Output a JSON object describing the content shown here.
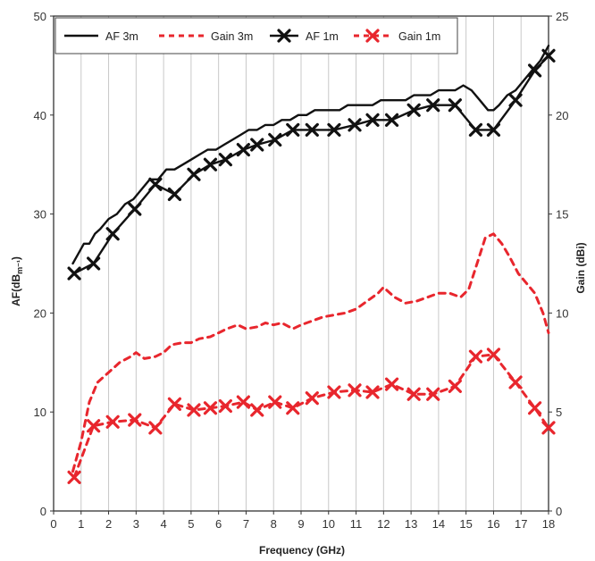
{
  "chart_data": {
    "type": "line",
    "title": "",
    "xlabel": "Frequency (GHz)",
    "ylabel_left": "AF(dBm⁻¹)",
    "ylabel_left_main": "AF(dB",
    "ylabel_left_sub": "m⁻¹",
    "ylabel_left_close": ")",
    "ylabel_right": "Gain (dBi)",
    "xlim": [
      0,
      18
    ],
    "ylim_left": [
      0,
      50
    ],
    "ylim_right": [
      0,
      25
    ],
    "x_ticks": [
      "0",
      "1",
      "2",
      "3",
      "4",
      "5",
      "6",
      "7",
      "8",
      "9",
      "10",
      "11",
      "12",
      "13",
      "14",
      "15",
      "16",
      "17",
      "18"
    ],
    "y_left_ticks": [
      "0",
      "10",
      "20",
      "30",
      "40",
      "50"
    ],
    "y_right_ticks": [
      "0",
      "5",
      "10",
      "15",
      "20",
      "25"
    ],
    "grid": "vertical",
    "legend_position": "top",
    "series": [
      {
        "name": "AF 3m",
        "axis": "left",
        "style": "solid",
        "color": "#111111",
        "marker": "none",
        "x": [
          0.7,
          0.9,
          1.1,
          1.3,
          1.5,
          1.7,
          2.0,
          2.3,
          2.6,
          2.9,
          3.2,
          3.5,
          3.8,
          4.1,
          4.4,
          4.7,
          5.0,
          5.3,
          5.6,
          5.9,
          6.2,
          6.5,
          6.8,
          7.1,
          7.4,
          7.7,
          8.0,
          8.3,
          8.6,
          8.9,
          9.2,
          9.5,
          9.8,
          10.1,
          10.4,
          10.7,
          11.0,
          11.3,
          11.6,
          11.9,
          12.2,
          12.5,
          12.8,
          13.1,
          13.4,
          13.7,
          14.0,
          14.3,
          14.6,
          14.9,
          15.2,
          15.5,
          15.8,
          16.0,
          16.2,
          16.5,
          16.8,
          17.1,
          17.4,
          17.7,
          18.0
        ],
        "y": [
          25,
          26,
          27,
          27,
          28,
          28.5,
          29.5,
          30,
          31,
          31.5,
          32.5,
          33.5,
          33.5,
          34.5,
          34.5,
          35,
          35.5,
          36,
          36.5,
          36.5,
          37,
          37.5,
          38,
          38.5,
          38.5,
          39,
          39,
          39.5,
          39.5,
          40,
          40,
          40.5,
          40.5,
          40.5,
          40.5,
          41,
          41,
          41,
          41,
          41.5,
          41.5,
          41.5,
          41.5,
          42,
          42,
          42,
          42.5,
          42.5,
          42.5,
          43,
          42.5,
          41.5,
          40.5,
          40.5,
          41,
          42,
          42.5,
          43.5,
          44.5,
          45.5,
          47
        ]
      },
      {
        "name": "Gain 3m",
        "axis": "right",
        "style": "dashed",
        "color": "#e8262d",
        "marker": "none",
        "x": [
          0.7,
          1.0,
          1.3,
          1.6,
          2.0,
          2.4,
          2.8,
          3.0,
          3.3,
          3.7,
          4.0,
          4.3,
          4.7,
          5.0,
          5.3,
          5.7,
          6.0,
          6.3,
          6.7,
          7.0,
          7.4,
          7.7,
          8.0,
          8.3,
          8.7,
          9.0,
          9.4,
          9.8,
          10.2,
          10.6,
          11.0,
          11.4,
          11.8,
          12.0,
          12.4,
          12.8,
          13.2,
          13.6,
          14.0,
          14.4,
          14.8,
          15.1,
          15.4,
          15.7,
          16.0,
          16.3,
          16.6,
          16.9,
          17.2,
          17.5,
          17.8,
          18.0
        ],
        "y": [
          2,
          3.5,
          5.5,
          6.5,
          7,
          7.5,
          7.8,
          8,
          7.7,
          7.8,
          8,
          8.4,
          8.5,
          8.5,
          8.7,
          8.8,
          9,
          9.2,
          9.4,
          9.2,
          9.3,
          9.5,
          9.4,
          9.5,
          9.2,
          9.4,
          9.6,
          9.8,
          9.9,
          10,
          10.2,
          10.6,
          11,
          11.3,
          10.8,
          10.5,
          10.6,
          10.8,
          11,
          11,
          10.8,
          11.2,
          12.5,
          13.8,
          14,
          13.5,
          12.8,
          12,
          11.5,
          11,
          10,
          9
        ]
      },
      {
        "name": "AF 1m",
        "axis": "left",
        "style": "solid",
        "color": "#111111",
        "marker": "x",
        "x": [
          0.75,
          1.45,
          2.15,
          2.95,
          3.7,
          4.4,
          5.1,
          5.7,
          6.25,
          6.9,
          7.4,
          8.05,
          8.7,
          9.4,
          10.2,
          10.95,
          11.6,
          12.3,
          13.1,
          13.8,
          14.6,
          15.35,
          16.0,
          16.8,
          17.5,
          18.0
        ],
        "y": [
          24,
          25,
          28,
          30.5,
          33,
          32,
          34,
          35,
          35.5,
          36.5,
          37,
          37.5,
          38.5,
          38.5,
          38.5,
          39,
          39.5,
          39.5,
          40.5,
          41,
          41,
          38.5,
          38.5,
          41.5,
          44.5,
          46
        ]
      },
      {
        "name": "Gain 1m",
        "axis": "right",
        "style": "dashed",
        "color": "#e8262d",
        "marker": "x",
        "x": [
          0.75,
          1.45,
          2.15,
          2.95,
          3.7,
          4.4,
          5.1,
          5.7,
          6.25,
          6.9,
          7.4,
          8.05,
          8.7,
          9.4,
          10.2,
          10.95,
          11.6,
          12.3,
          13.1,
          13.8,
          14.6,
          15.35,
          16.0,
          16.8,
          17.5,
          18.0
        ],
        "y": [
          1.7,
          4.3,
          4.5,
          4.6,
          4.2,
          5.4,
          5.1,
          5.2,
          5.3,
          5.5,
          5.1,
          5.5,
          5.2,
          5.7,
          6,
          6.1,
          6,
          6.4,
          5.9,
          5.9,
          6.3,
          7.8,
          7.9,
          6.5,
          5.2,
          4.2
        ]
      }
    ]
  }
}
